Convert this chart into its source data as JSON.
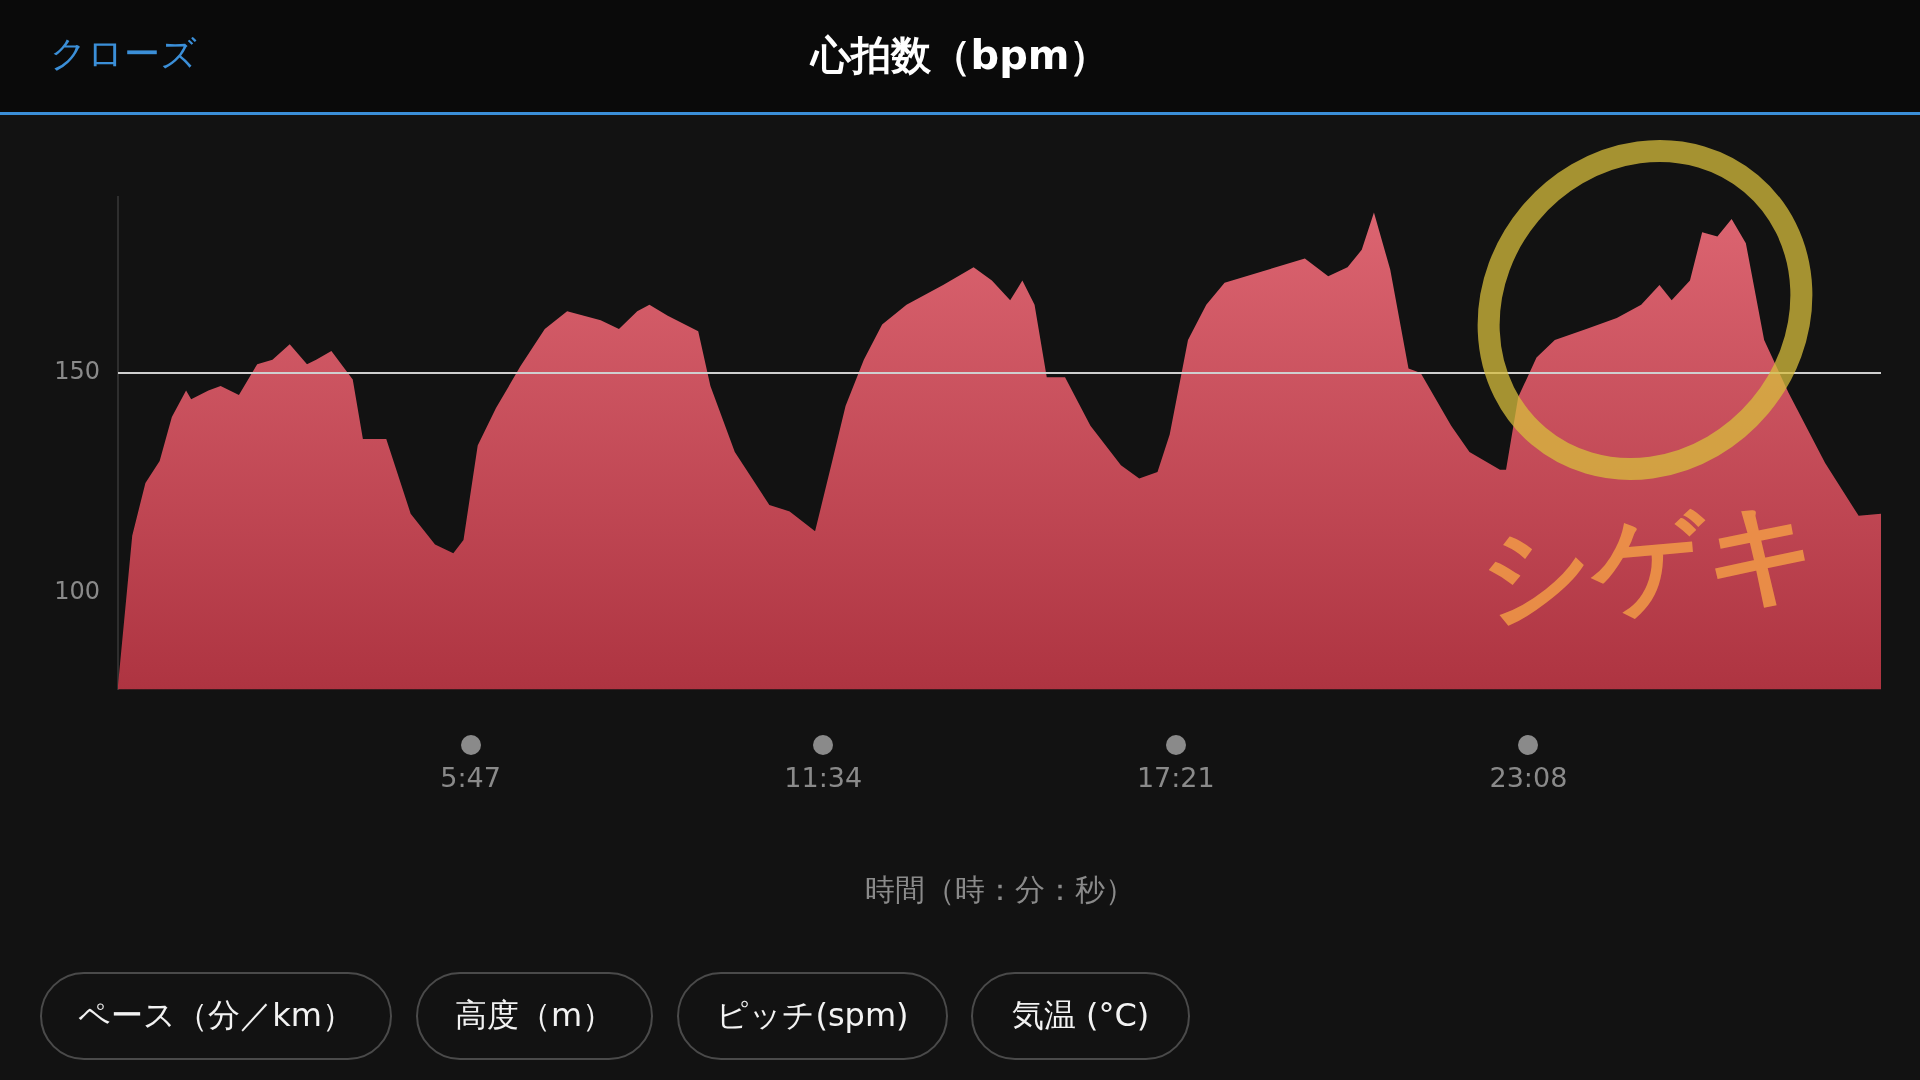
{
  "chart_data": {
    "type": "area",
    "title": "心拍数（bpm）",
    "xlabel": "時間（時：分：秒）",
    "x": [
      0,
      14,
      27,
      41,
      53,
      67,
      72,
      89,
      101,
      119,
      137,
      152,
      169,
      186,
      195,
      210,
      231,
      241,
      264,
      288,
      312,
      330,
      340,
      354,
      372,
      396,
      420,
      442,
      475,
      493,
      511,
      523,
      541,
      571,
      583,
      607,
      641,
      661,
      686,
      704,
      716,
      734,
      752,
      776,
      812,
      842,
      860,
      878,
      890,
      902,
      914,
      932,
      957,
      987,
      1005,
      1023,
      1035,
      1053,
      1071,
      1089,
      1125,
      1168,
      1191,
      1210,
      1224,
      1236,
      1252,
      1270,
      1282,
      1312,
      1330,
      1360,
      1366,
      1378,
      1396,
      1414,
      1445,
      1475,
      1499,
      1517,
      1529,
      1547,
      1559,
      1574,
      1588,
      1602,
      1620,
      1644,
      1680,
      1713,
      1735
    ],
    "series": [
      {
        "color": "#d4404f",
        "values": [
          79,
          113,
          125,
          130,
          140,
          146,
          144,
          146,
          147,
          145,
          152,
          153,
          156.5,
          152,
          153,
          155,
          148.5,
          135,
          135,
          118,
          111,
          109,
          112,
          133.5,
          142,
          151.5,
          160,
          164,
          162,
          160,
          164,
          165.5,
          163,
          159.5,
          147,
          132,
          120,
          118.5,
          114,
          131,
          142.5,
          153,
          161,
          165.5,
          170,
          174,
          171,
          166.5,
          171,
          165.5,
          149,
          149,
          138,
          129,
          126,
          127.5,
          136,
          157.5,
          165.5,
          170.5,
          173,
          176,
          172,
          174,
          178,
          186.5,
          173.5,
          151,
          150,
          138,
          132,
          128,
          128,
          144.5,
          153.5,
          157.5,
          160,
          162.5,
          165.5,
          170,
          166.5,
          171,
          182,
          181,
          185,
          179.5,
          157.5,
          145.5,
          129.5,
          117.5,
          118
        ]
      }
    ],
    "xlim": [
      0,
      1735
    ],
    "xticks": [
      {
        "value": 347,
        "label": "5:47"
      },
      {
        "value": 694,
        "label": "11:34"
      },
      {
        "value": 1041,
        "label": "17:21"
      },
      {
        "value": 1388,
        "label": "23:08"
      }
    ],
    "ylim": [
      78,
      190
    ],
    "yticks": [
      100,
      150
    ],
    "grid": false,
    "legend": false,
    "ref_lines": [
      {
        "axis": "y",
        "value": 150,
        "color": "#cfcfcf"
      }
    ],
    "annotations": [
      "クローズ",
      "ペース（分／km）",
      "高度（m）",
      "ピッチ(spm)",
      "気温 (°C)",
      "シゲキ"
    ]
  }
}
